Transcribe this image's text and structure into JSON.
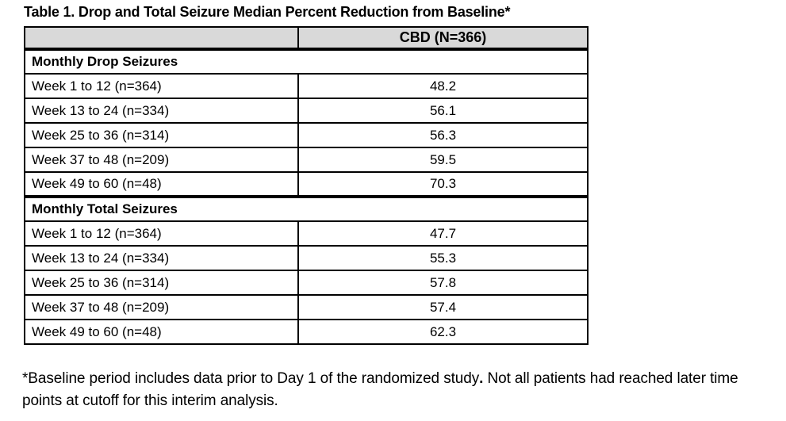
{
  "title": "Table 1. Drop and Total Seizure Median Percent Reduction from Baseline*",
  "table": {
    "header": {
      "col1": "",
      "col2": "CBD (N=366)"
    },
    "sections": [
      {
        "label": "Monthly Drop Seizures",
        "rows": [
          {
            "label": "Week 1 to 12 (n=364)",
            "value": "48.2"
          },
          {
            "label": "Week 13 to 24 (n=334)",
            "value": "56.1"
          },
          {
            "label": "Week 25 to 36 (n=314)",
            "value": "56.3"
          },
          {
            "label": "Week 37 to 48 (n=209)",
            "value": "59.5"
          },
          {
            "label": "Week 49 to 60 (n=48)",
            "value": "70.3"
          }
        ]
      },
      {
        "label": "Monthly Total Seizures",
        "rows": [
          {
            "label": "Week 1 to 12 (n=364)",
            "value": "47.7"
          },
          {
            "label": "Week 13 to 24 (n=334)",
            "value": "55.3"
          },
          {
            "label": "Week 25 to 36 (n=314)",
            "value": "57.8"
          },
          {
            "label": "Week 37 to 48 (n=209)",
            "value": "57.4"
          },
          {
            "label": "Week 49 to 60 (n=48)",
            "value": "62.3"
          }
        ]
      }
    ]
  },
  "footnote": {
    "part1": "*Baseline period includes data prior to Day 1 of the randomized study",
    "bold_period": ".",
    "part2": " Not all patients had reached later time points at cutoff for this interim analysis."
  },
  "colors": {
    "header_bg": "#d9d9d9",
    "border": "#000000",
    "text": "#000000",
    "page_bg": "#ffffff"
  },
  "chart_data": {
    "type": "table",
    "title": "Table 1. Drop and Total Seizure Median Percent Reduction from Baseline*",
    "columns": [
      "",
      "CBD (N=366)"
    ],
    "sections": [
      {
        "name": "Monthly Drop Seizures",
        "categories": [
          "Week 1 to 12 (n=364)",
          "Week 13 to 24 (n=334)",
          "Week 25 to 36 (n=314)",
          "Week 37 to 48 (n=209)",
          "Week 49 to 60 (n=48)"
        ],
        "values": [
          48.2,
          56.1,
          56.3,
          59.5,
          70.3
        ]
      },
      {
        "name": "Monthly Total Seizures",
        "categories": [
          "Week 1 to 12 (n=364)",
          "Week 13 to 24 (n=334)",
          "Week 25 to 36 (n=314)",
          "Week 37 to 48 (n=209)",
          "Week 49 to 60 (n=48)"
        ],
        "values": [
          47.7,
          55.3,
          57.8,
          57.4,
          62.3
        ]
      }
    ]
  }
}
